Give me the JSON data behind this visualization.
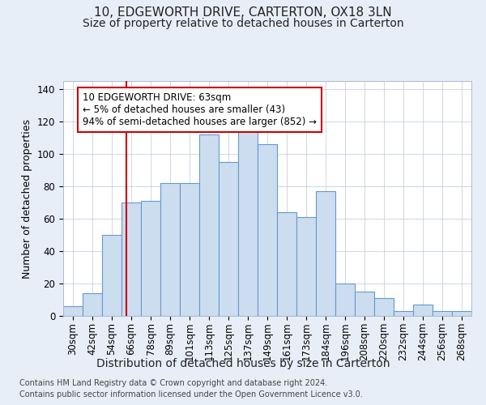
{
  "title": "10, EDGEWORTH DRIVE, CARTERTON, OX18 3LN",
  "subtitle": "Size of property relative to detached houses in Carterton",
  "xlabel": "Distribution of detached houses by size in Carterton",
  "ylabel": "Number of detached properties",
  "bar_labels": [
    "30sqm",
    "42sqm",
    "54sqm",
    "66sqm",
    "78sqm",
    "89sqm",
    "101sqm",
    "113sqm",
    "125sqm",
    "137sqm",
    "149sqm",
    "161sqm",
    "173sqm",
    "184sqm",
    "196sqm",
    "208sqm",
    "220sqm",
    "232sqm",
    "244sqm",
    "256sqm",
    "268sqm"
  ],
  "bar_heights": [
    6,
    14,
    50,
    70,
    71,
    82,
    82,
    112,
    95,
    115,
    106,
    64,
    61,
    77,
    20,
    15,
    11,
    3,
    7,
    3,
    3
  ],
  "bar_color": "#ccddf0",
  "bar_edge_color": "#6699cc",
  "vline_color": "#cc0000",
  "annotation_box_text": "10 EDGEWORTH DRIVE: 63sqm\n← 5% of detached houses are smaller (43)\n94% of semi-detached houses are larger (852) →",
  "ylim": [
    0,
    145
  ],
  "yticks": [
    0,
    20,
    40,
    60,
    80,
    100,
    120,
    140
  ],
  "background_color": "#e8eef8",
  "plot_background_color": "#ffffff",
  "grid_color": "#c8d0e0",
  "footer_line1": "Contains HM Land Registry data © Crown copyright and database right 2024.",
  "footer_line2": "Contains public sector information licensed under the Open Government Licence v3.0.",
  "title_fontsize": 11,
  "subtitle_fontsize": 10,
  "xlabel_fontsize": 10,
  "ylabel_fontsize": 9,
  "tick_fontsize": 8.5,
  "footer_fontsize": 7,
  "annotation_fontsize": 8.5
}
